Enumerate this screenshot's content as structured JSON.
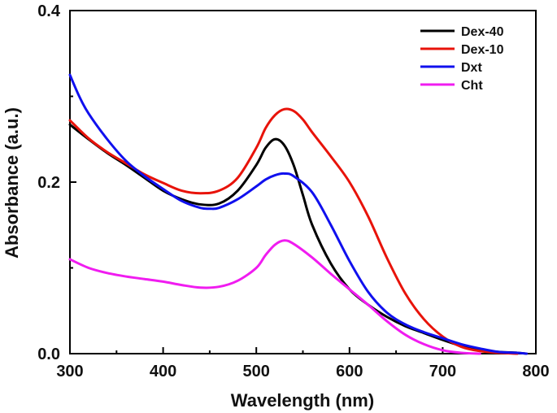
{
  "chart_data": {
    "type": "line",
    "title": "",
    "xlabel": "Wavelength (nm)",
    "ylabel": "Absorbance (a.u.)",
    "xlim": [
      300,
      800
    ],
    "ylim": [
      0.0,
      0.4
    ],
    "x_ticks": [
      300,
      400,
      500,
      600,
      700,
      800
    ],
    "y_ticks": [
      0.0,
      0.2,
      0.4
    ],
    "x_tick_labels": [
      "300",
      "400",
      "500",
      "600",
      "700",
      "800"
    ],
    "y_tick_labels": [
      "0.0",
      "0.2",
      "0.4"
    ],
    "grid": false,
    "legend_position": "top-right",
    "series": [
      {
        "name": "Dex-40",
        "color": "#000000",
        "x": [
          300,
          320,
          340,
          360,
          380,
          400,
          420,
          440,
          460,
          480,
          500,
          510,
          520,
          530,
          540,
          550,
          560,
          580,
          600,
          620,
          640,
          660,
          680,
          700,
          720,
          740,
          760,
          780,
          790
        ],
        "y": [
          0.267,
          0.25,
          0.234,
          0.22,
          0.205,
          0.19,
          0.18,
          0.174,
          0.175,
          0.19,
          0.22,
          0.24,
          0.25,
          0.243,
          0.22,
          0.185,
          0.15,
          0.105,
          0.075,
          0.057,
          0.043,
          0.032,
          0.024,
          0.016,
          0.009,
          0.004,
          0.002,
          0.001,
          0.0
        ]
      },
      {
        "name": "Dex-10",
        "color": "#e8130a",
        "x": [
          300,
          320,
          340,
          360,
          380,
          400,
          420,
          440,
          460,
          480,
          500,
          510,
          520,
          530,
          540,
          550,
          560,
          580,
          600,
          620,
          640,
          660,
          680,
          700,
          720,
          740,
          760,
          780
        ],
        "y": [
          0.272,
          0.251,
          0.235,
          0.222,
          0.209,
          0.199,
          0.19,
          0.187,
          0.19,
          0.205,
          0.24,
          0.263,
          0.278,
          0.285,
          0.283,
          0.273,
          0.258,
          0.23,
          0.2,
          0.16,
          0.112,
          0.07,
          0.04,
          0.02,
          0.008,
          0.003,
          0.001,
          0.0
        ]
      },
      {
        "name": "Dxt",
        "color": "#1010ee",
        "x": [
          300,
          310,
          320,
          340,
          360,
          380,
          400,
          420,
          440,
          450,
          460,
          480,
          500,
          510,
          520,
          530,
          540,
          560,
          580,
          600,
          620,
          640,
          660,
          680,
          700,
          720,
          740,
          760,
          780,
          790
        ],
        "y": [
          0.325,
          0.3,
          0.28,
          0.25,
          0.225,
          0.207,
          0.192,
          0.178,
          0.17,
          0.169,
          0.17,
          0.18,
          0.195,
          0.203,
          0.208,
          0.21,
          0.207,
          0.188,
          0.15,
          0.108,
          0.072,
          0.048,
          0.034,
          0.025,
          0.018,
          0.011,
          0.006,
          0.002,
          0.001,
          0.0
        ]
      },
      {
        "name": "Cht",
        "color": "#f01cf0",
        "x": [
          300,
          320,
          340,
          360,
          380,
          400,
          420,
          440,
          460,
          480,
          500,
          510,
          520,
          530,
          540,
          560,
          580,
          600,
          620,
          640,
          660,
          680,
          700,
          720,
          740
        ],
        "y": [
          0.11,
          0.1,
          0.094,
          0.09,
          0.087,
          0.084,
          0.08,
          0.077,
          0.078,
          0.085,
          0.1,
          0.115,
          0.127,
          0.132,
          0.128,
          0.112,
          0.093,
          0.075,
          0.057,
          0.038,
          0.022,
          0.011,
          0.004,
          0.001,
          0.0
        ]
      }
    ]
  }
}
